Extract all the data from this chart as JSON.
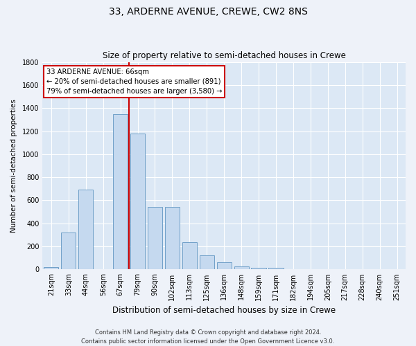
{
  "title": "33, ARDERNE AVENUE, CREWE, CW2 8NS",
  "subtitle": "Size of property relative to semi-detached houses in Crewe",
  "xlabel": "Distribution of semi-detached houses by size in Crewe",
  "ylabel": "Number of semi-detached properties",
  "categories": [
    "21sqm",
    "33sqm",
    "44sqm",
    "56sqm",
    "67sqm",
    "79sqm",
    "90sqm",
    "102sqm",
    "113sqm",
    "125sqm",
    "136sqm",
    "148sqm",
    "159sqm",
    "171sqm",
    "182sqm",
    "194sqm",
    "205sqm",
    "217sqm",
    "228sqm",
    "240sqm",
    "251sqm"
  ],
  "values": [
    20,
    320,
    690,
    0,
    1350,
    1180,
    545,
    540,
    235,
    120,
    60,
    25,
    15,
    12,
    5,
    2,
    1,
    0,
    0,
    0,
    0
  ],
  "bar_color": "#c5d9ef",
  "bar_edge_color": "#6fa0c8",
  "vline_color": "#cc0000",
  "vline_index": 4.5,
  "annotation_text": "33 ARDERNE AVENUE: 66sqm\n← 20% of semi-detached houses are smaller (891)\n79% of semi-detached houses are larger (3,580) →",
  "ylim": [
    0,
    1800
  ],
  "yticks": [
    0,
    200,
    400,
    600,
    800,
    1000,
    1200,
    1400,
    1600,
    1800
  ],
  "footer_line1": "Contains HM Land Registry data © Crown copyright and database right 2024.",
  "footer_line2": "Contains public sector information licensed under the Open Government Licence v3.0.",
  "background_color": "#eef2f9",
  "plot_bg_color": "#dce8f5",
  "title_fontsize": 10,
  "subtitle_fontsize": 8.5,
  "xlabel_fontsize": 8.5,
  "ylabel_fontsize": 7.5,
  "tick_fontsize": 7,
  "footer_fontsize": 6
}
